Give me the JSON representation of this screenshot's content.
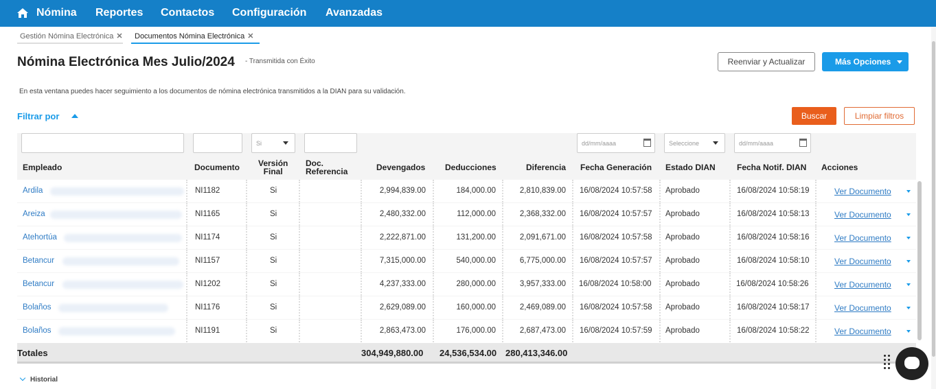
{
  "nav": {
    "items": [
      "Nómina",
      "Reportes",
      "Contactos",
      "Configuración",
      "Avanzadas"
    ],
    "bar_color": "#1580c8"
  },
  "tabs": [
    {
      "label": "Gestión Nómina Electrónica",
      "close": "✕",
      "active": false
    },
    {
      "label": "Documentos Nómina Electrónica",
      "close": "✕",
      "active": true
    }
  ],
  "page": {
    "title": "Nómina Electrónica Mes Julio/2024",
    "subtitle": "- Transmitida con Éxito",
    "description": "En esta ventana puedes hacer seguimiento a los documentos de nómina electrónica transmitidos a la DIAN para su validación."
  },
  "actions": {
    "resend": "Reenviar y Actualizar",
    "more": "Más Opciones",
    "more_color": "#1a9be8"
  },
  "filters": {
    "toggle_label": "Filtrar por",
    "search": "Buscar",
    "clear": "Limpiar filtros",
    "search_color": "#e95e1c",
    "version_value": "Si",
    "date_placeholder": "dd/mm/aaaa",
    "estado_placeholder": "Seleccione"
  },
  "table": {
    "headers": {
      "empleado": "Empleado",
      "documento": "Documento",
      "version_l1": "Versión",
      "version_l2": "Final",
      "docref_l1": "Doc.",
      "docref_l2": "Referencia",
      "devengados": "Devengados",
      "deducciones": "Deducciones",
      "diferencia": "Diferencia",
      "fecha_gen": "Fecha Generación",
      "estado": "Estado DIAN",
      "fecha_notif": "Fecha Notif. DIAN",
      "acciones": "Acciones"
    },
    "rows": [
      {
        "empleado": "Ardila",
        "documento": "NI1182",
        "version": "Si",
        "devengados": "2,994,839.00",
        "deducciones": "184,000.00",
        "diferencia": "2,810,839.00",
        "fecha_gen": "16/08/2024 10:57:58",
        "estado": "Aprobado",
        "fecha_notif": "16/08/2024 10:58:19",
        "accion": "Ver Documento"
      },
      {
        "empleado": "Areiza",
        "documento": "NI1165",
        "version": "Si",
        "devengados": "2,480,332.00",
        "deducciones": "112,000.00",
        "diferencia": "2,368,332.00",
        "fecha_gen": "16/08/2024 10:57:57",
        "estado": "Aprobado",
        "fecha_notif": "16/08/2024 10:58:13",
        "accion": "Ver Documento"
      },
      {
        "empleado": "Atehortúa",
        "documento": "NI1174",
        "version": "Si",
        "devengados": "2,222,871.00",
        "deducciones": "131,200.00",
        "diferencia": "2,091,671.00",
        "fecha_gen": "16/08/2024 10:57:58",
        "estado": "Aprobado",
        "fecha_notif": "16/08/2024 10:58:16",
        "accion": "Ver Documento"
      },
      {
        "empleado": "Betancur",
        "documento": "NI1157",
        "version": "Si",
        "devengados": "7,315,000.00",
        "deducciones": "540,000.00",
        "diferencia": "6,775,000.00",
        "fecha_gen": "16/08/2024 10:57:57",
        "estado": "Aprobado",
        "fecha_notif": "16/08/2024 10:58:10",
        "accion": "Ver Documento"
      },
      {
        "empleado": "Betancur",
        "documento": "NI1202",
        "version": "Si",
        "devengados": "4,237,333.00",
        "deducciones": "280,000.00",
        "diferencia": "3,957,333.00",
        "fecha_gen": "16/08/2024 10:58:00",
        "estado": "Aprobado",
        "fecha_notif": "16/08/2024 10:58:26",
        "accion": "Ver Documento"
      },
      {
        "empleado": "Bolaños",
        "documento": "NI1176",
        "version": "Si",
        "devengados": "2,629,089.00",
        "deducciones": "160,000.00",
        "diferencia": "2,469,089.00",
        "fecha_gen": "16/08/2024 10:57:58",
        "estado": "Aprobado",
        "fecha_notif": "16/08/2024 10:58:17",
        "accion": "Ver Documento"
      },
      {
        "empleado": "Bolaños",
        "documento": "NI1191",
        "version": "Si",
        "devengados": "2,863,473.00",
        "deducciones": "176,000.00",
        "diferencia": "2,687,473.00",
        "fecha_gen": "16/08/2024 10:57:59",
        "estado": "Aprobado",
        "fecha_notif": "16/08/2024 10:58:22",
        "accion": "Ver Documento"
      }
    ],
    "totals": {
      "label": "Totales",
      "devengados": "304,949,880.00",
      "deducciones": "24,536,534.00",
      "diferencia": "280,413,346.00"
    }
  },
  "historial": "Historial",
  "icons": {
    "home": "home-icon",
    "calendar": "calendar-icon",
    "chat": "chat-icon",
    "drag": "drag-dots-icon"
  }
}
